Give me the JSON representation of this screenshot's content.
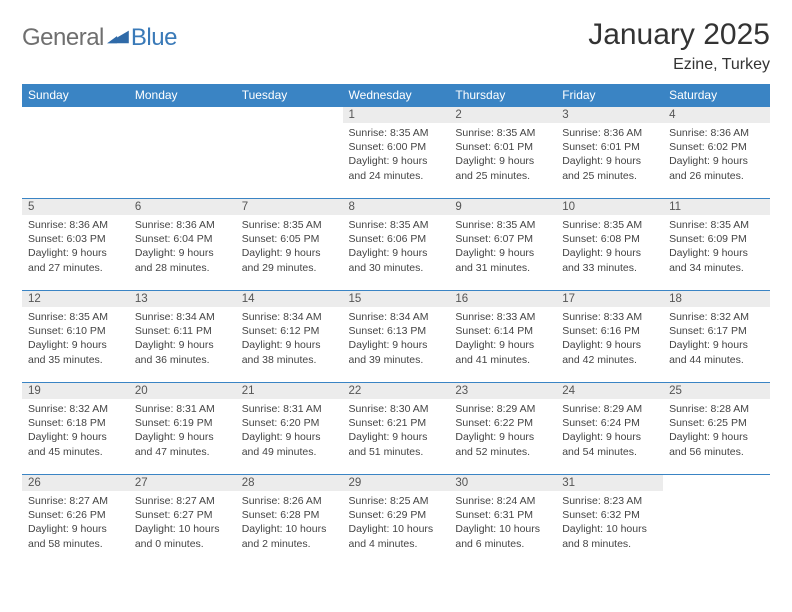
{
  "brand": {
    "text_general": "General",
    "text_blue": "Blue",
    "mark_color": "#2f6aa8"
  },
  "header": {
    "month_title": "January 2025",
    "location": "Ezine, Turkey"
  },
  "calendar": {
    "type": "table",
    "header_bg": "#3a84c4",
    "header_fg": "#ffffff",
    "grid_color": "#3a84c4",
    "daynum_bg": "#ececec",
    "columns": [
      "Sunday",
      "Monday",
      "Tuesday",
      "Wednesday",
      "Thursday",
      "Friday",
      "Saturday"
    ],
    "weeks": [
      [
        null,
        null,
        null,
        {
          "n": "1",
          "sunrise": "8:35 AM",
          "sunset": "6:00 PM",
          "dl_h": "9",
          "dl_m": "24"
        },
        {
          "n": "2",
          "sunrise": "8:35 AM",
          "sunset": "6:01 PM",
          "dl_h": "9",
          "dl_m": "25"
        },
        {
          "n": "3",
          "sunrise": "8:36 AM",
          "sunset": "6:01 PM",
          "dl_h": "9",
          "dl_m": "25"
        },
        {
          "n": "4",
          "sunrise": "8:36 AM",
          "sunset": "6:02 PM",
          "dl_h": "9",
          "dl_m": "26"
        }
      ],
      [
        {
          "n": "5",
          "sunrise": "8:36 AM",
          "sunset": "6:03 PM",
          "dl_h": "9",
          "dl_m": "27"
        },
        {
          "n": "6",
          "sunrise": "8:36 AM",
          "sunset": "6:04 PM",
          "dl_h": "9",
          "dl_m": "28"
        },
        {
          "n": "7",
          "sunrise": "8:35 AM",
          "sunset": "6:05 PM",
          "dl_h": "9",
          "dl_m": "29"
        },
        {
          "n": "8",
          "sunrise": "8:35 AM",
          "sunset": "6:06 PM",
          "dl_h": "9",
          "dl_m": "30"
        },
        {
          "n": "9",
          "sunrise": "8:35 AM",
          "sunset": "6:07 PM",
          "dl_h": "9",
          "dl_m": "31"
        },
        {
          "n": "10",
          "sunrise": "8:35 AM",
          "sunset": "6:08 PM",
          "dl_h": "9",
          "dl_m": "33"
        },
        {
          "n": "11",
          "sunrise": "8:35 AM",
          "sunset": "6:09 PM",
          "dl_h": "9",
          "dl_m": "34"
        }
      ],
      [
        {
          "n": "12",
          "sunrise": "8:35 AM",
          "sunset": "6:10 PM",
          "dl_h": "9",
          "dl_m": "35"
        },
        {
          "n": "13",
          "sunrise": "8:34 AM",
          "sunset": "6:11 PM",
          "dl_h": "9",
          "dl_m": "36"
        },
        {
          "n": "14",
          "sunrise": "8:34 AM",
          "sunset": "6:12 PM",
          "dl_h": "9",
          "dl_m": "38"
        },
        {
          "n": "15",
          "sunrise": "8:34 AM",
          "sunset": "6:13 PM",
          "dl_h": "9",
          "dl_m": "39"
        },
        {
          "n": "16",
          "sunrise": "8:33 AM",
          "sunset": "6:14 PM",
          "dl_h": "9",
          "dl_m": "41"
        },
        {
          "n": "17",
          "sunrise": "8:33 AM",
          "sunset": "6:16 PM",
          "dl_h": "9",
          "dl_m": "42"
        },
        {
          "n": "18",
          "sunrise": "8:32 AM",
          "sunset": "6:17 PM",
          "dl_h": "9",
          "dl_m": "44"
        }
      ],
      [
        {
          "n": "19",
          "sunrise": "8:32 AM",
          "sunset": "6:18 PM",
          "dl_h": "9",
          "dl_m": "45"
        },
        {
          "n": "20",
          "sunrise": "8:31 AM",
          "sunset": "6:19 PM",
          "dl_h": "9",
          "dl_m": "47"
        },
        {
          "n": "21",
          "sunrise": "8:31 AM",
          "sunset": "6:20 PM",
          "dl_h": "9",
          "dl_m": "49"
        },
        {
          "n": "22",
          "sunrise": "8:30 AM",
          "sunset": "6:21 PM",
          "dl_h": "9",
          "dl_m": "51"
        },
        {
          "n": "23",
          "sunrise": "8:29 AM",
          "sunset": "6:22 PM",
          "dl_h": "9",
          "dl_m": "52"
        },
        {
          "n": "24",
          "sunrise": "8:29 AM",
          "sunset": "6:24 PM",
          "dl_h": "9",
          "dl_m": "54"
        },
        {
          "n": "25",
          "sunrise": "8:28 AM",
          "sunset": "6:25 PM",
          "dl_h": "9",
          "dl_m": "56"
        }
      ],
      [
        {
          "n": "26",
          "sunrise": "8:27 AM",
          "sunset": "6:26 PM",
          "dl_h": "9",
          "dl_m": "58"
        },
        {
          "n": "27",
          "sunrise": "8:27 AM",
          "sunset": "6:27 PM",
          "dl_h": "10",
          "dl_m": "0"
        },
        {
          "n": "28",
          "sunrise": "8:26 AM",
          "sunset": "6:28 PM",
          "dl_h": "10",
          "dl_m": "2"
        },
        {
          "n": "29",
          "sunrise": "8:25 AM",
          "sunset": "6:29 PM",
          "dl_h": "10",
          "dl_m": "4"
        },
        {
          "n": "30",
          "sunrise": "8:24 AM",
          "sunset": "6:31 PM",
          "dl_h": "10",
          "dl_m": "6"
        },
        {
          "n": "31",
          "sunrise": "8:23 AM",
          "sunset": "6:32 PM",
          "dl_h": "10",
          "dl_m": "8"
        },
        null
      ]
    ],
    "labels": {
      "sunrise": "Sunrise:",
      "sunset": "Sunset:",
      "daylight_prefix": "Daylight:",
      "hours_word": "hours",
      "and_word": "and",
      "minutes_word": "minutes."
    }
  }
}
